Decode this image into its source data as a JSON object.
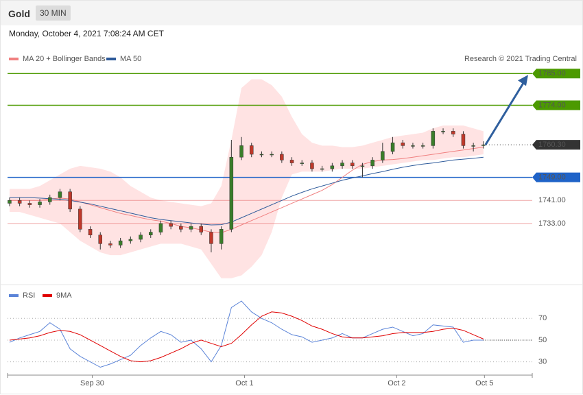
{
  "header": {
    "symbol": "Gold",
    "timeframe": "30 MIN",
    "date": "Monday, October 4, 2021 7:08:24 AM CET"
  },
  "chart_data": [
    {
      "type": "candlestick",
      "annotation": "Research © 2021 Trading Central",
      "xlim": [
        -0.2,
        51.84
      ],
      "ylim": [
        1713,
        1801
      ],
      "up_color": "#3a7d2a",
      "down_color": "#c0392b",
      "ohlc": {
        "open": [
          1740,
          1741,
          1740,
          1739.5,
          1740.5,
          1742,
          1744,
          1738,
          1731,
          1729,
          1726,
          1725.5,
          1727,
          1727.5,
          1729,
          1730,
          1733,
          1732,
          1731,
          1732,
          1730,
          1726,
          1731,
          1756,
          1760,
          1757,
          1757,
          1757,
          1755,
          1754,
          1754,
          1752,
          1752,
          1753,
          1754,
          1753,
          1753,
          1755,
          1758,
          1761,
          1760,
          1760,
          1760,
          1765,
          1765,
          1764,
          1760,
          1760
        ],
        "high": [
          1742,
          1742,
          1741,
          1741.5,
          1743,
          1745,
          1745,
          1739,
          1732,
          1730,
          1727,
          1728,
          1728.5,
          1730,
          1731,
          1734,
          1734,
          1733,
          1733,
          1733,
          1731,
          1732,
          1762,
          1763,
          1761,
          1758,
          1758,
          1758,
          1756,
          1755,
          1755,
          1753,
          1754,
          1755,
          1755,
          1754,
          1756,
          1761,
          1763,
          1762,
          1761,
          1761,
          1766,
          1766,
          1766,
          1765,
          1761,
          1761.5
        ],
        "low": [
          1739,
          1739,
          1738.5,
          1738.5,
          1739.5,
          1741,
          1737,
          1730,
          1728,
          1724,
          1724.5,
          1724.5,
          1726,
          1726.5,
          1728,
          1729,
          1731,
          1730,
          1730,
          1729,
          1723,
          1724,
          1730,
          1755,
          1756,
          1756,
          1756,
          1754,
          1753,
          1753,
          1751,
          1751,
          1751,
          1752,
          1752,
          1749,
          1752,
          1754,
          1757,
          1759,
          1759,
          1759,
          1759,
          1764,
          1763,
          1759,
          1758,
          1759
        ],
        "close": [
          1741,
          1740,
          1739.5,
          1740.5,
          1742,
          1744,
          1738,
          1731,
          1729,
          1726,
          1725.5,
          1727,
          1727.5,
          1729,
          1730,
          1733,
          1732,
          1731,
          1732,
          1730,
          1726,
          1731,
          1756,
          1760,
          1757,
          1757,
          1757,
          1755,
          1754,
          1754,
          1752,
          1752,
          1753,
          1754,
          1753,
          1753,
          1755,
          1758,
          1761,
          1760,
          1760,
          1760,
          1765,
          1765,
          1764,
          1760,
          1760,
          1760.3
        ]
      },
      "bands": {
        "color": "#ffdcdc",
        "upper": [
          1745,
          1745,
          1745,
          1746,
          1748,
          1750,
          1752,
          1753,
          1752.5,
          1752,
          1751,
          1749,
          1746,
          1744,
          1742,
          1741,
          1740.5,
          1740,
          1739.5,
          1739,
          1740,
          1746,
          1762,
          1780,
          1783,
          1783,
          1781,
          1777,
          1770,
          1764,
          1761,
          1760,
          1760,
          1759.5,
          1759.5,
          1760,
          1761,
          1762,
          1763,
          1763.5,
          1764,
          1764.5,
          1766,
          1767,
          1767,
          1767,
          1766,
          1765
        ],
        "lower": [
          1737,
          1737,
          1736,
          1735,
          1734,
          1733,
          1730,
          1727,
          1725,
          1723,
          1722,
          1722,
          1723,
          1724,
          1725,
          1726,
          1726,
          1726,
          1725,
          1724,
          1719,
          1714,
          1714,
          1715,
          1718,
          1722,
          1730,
          1742,
          1750,
          1751,
          1751,
          1751,
          1751.5,
          1752,
          1752,
          1752,
          1752.5,
          1753,
          1753.5,
          1754,
          1754.5,
          1755,
          1755,
          1755.5,
          1756,
          1756,
          1756.5,
          1757
        ]
      },
      "series": [
        {
          "name": "MA 20 + Bollinger Bands",
          "color": "#f08080",
          "values": [
            1741,
            1741,
            1741,
            1741,
            1741.5,
            1741.8,
            1741.5,
            1740.5,
            1739.5,
            1738.5,
            1737.5,
            1736.5,
            1735.8,
            1735,
            1734.3,
            1733.8,
            1733,
            1732,
            1731.5,
            1730.8,
            1730,
            1729.8,
            1731,
            1732.5,
            1734,
            1735.5,
            1737,
            1738.5,
            1740,
            1741.5,
            1743,
            1744.5,
            1746.5,
            1749,
            1751.5,
            1753.5,
            1754.5,
            1755,
            1755.2,
            1755.5,
            1756,
            1756.5,
            1757,
            1757.5,
            1758,
            1758.5,
            1759,
            1759.5
          ]
        },
        {
          "name": "MA 50",
          "color": "#2d5a9a",
          "values": [
            1742,
            1742,
            1742,
            1741.8,
            1741.6,
            1741.4,
            1741,
            1740.4,
            1739.8,
            1739,
            1738.2,
            1737.4,
            1736.6,
            1735.8,
            1735,
            1734.4,
            1734,
            1733.6,
            1733.2,
            1732.8,
            1732.5,
            1732.6,
            1733.5,
            1735,
            1736.5,
            1738,
            1739.5,
            1741,
            1742.5,
            1743.8,
            1745,
            1746,
            1747,
            1748,
            1748.8,
            1749.5,
            1750.3,
            1751,
            1751.8,
            1752.5,
            1753.1,
            1753.6,
            1754,
            1754.5,
            1755,
            1755.3,
            1755.6,
            1756
          ]
        }
      ],
      "levels": [
        {
          "value": 1785,
          "label": "1785.00",
          "color": "#4c9a00",
          "style": "box"
        },
        {
          "value": 1774,
          "label": "1774.00",
          "color": "#4c9a00",
          "style": "box"
        },
        {
          "value": 1760.3,
          "label": "1760.30",
          "color": "#333333",
          "style": "current"
        },
        {
          "value": 1749,
          "label": "1749.00",
          "color": "#1f63c8",
          "style": "box"
        },
        {
          "value": 1741,
          "label": "1741.00",
          "color": "#e05050",
          "style": "text"
        },
        {
          "value": 1733,
          "label": "1733.00",
          "color": "#e05050",
          "style": "text"
        }
      ]
    },
    {
      "type": "line",
      "xlim": [
        -0.2,
        51.84
      ],
      "ylim": [
        19,
        98
      ],
      "xticks": [
        {
          "value": 8.2,
          "label": "Sep 30"
        },
        {
          "value": 23.3,
          "label": "Oct 1"
        },
        {
          "value": 38.4,
          "label": "Oct 2"
        },
        {
          "value": 47.1,
          "label": "Oct 5"
        }
      ],
      "yticks": [
        30,
        50,
        70
      ],
      "grid": true,
      "series": [
        {
          "name": "RSI",
          "color": "#5b84d8",
          "values": [
            48,
            52,
            55,
            58,
            66,
            60,
            42,
            35,
            30,
            25,
            28,
            32,
            36,
            45,
            52,
            58,
            55,
            48,
            50,
            42,
            30,
            45,
            80,
            86,
            76,
            70,
            66,
            60,
            55,
            53,
            48,
            50,
            52,
            56,
            52,
            52,
            56,
            60,
            62,
            58,
            54,
            56,
            64,
            63,
            62,
            48,
            50,
            50
          ]
        },
        {
          "name": "9MA",
          "color": "#e00000",
          "values": [
            50,
            51,
            52,
            54,
            57,
            59,
            58,
            55,
            50,
            45,
            40,
            35,
            31,
            30,
            31,
            34,
            38,
            42,
            47,
            50,
            47,
            44,
            47,
            55,
            64,
            72,
            76,
            75,
            72,
            68,
            63,
            60,
            56,
            53,
            52,
            52,
            53,
            54,
            56,
            57,
            57,
            57,
            58,
            60,
            61,
            59,
            55,
            51
          ]
        }
      ]
    }
  ]
}
